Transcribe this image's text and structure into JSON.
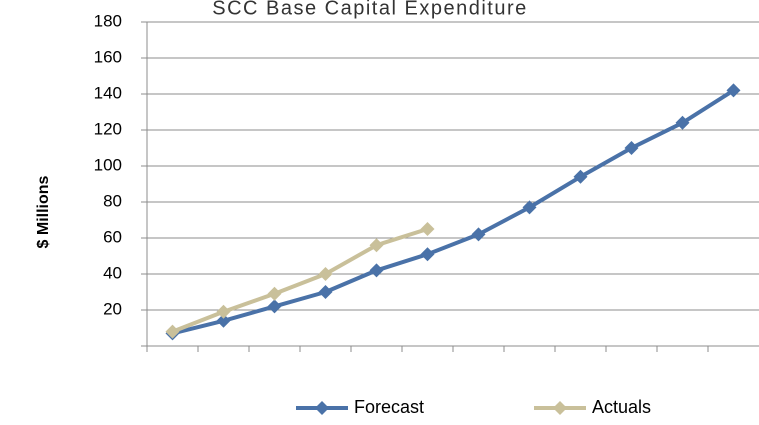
{
  "chart_data": {
    "type": "line",
    "title": "SCC Base Capital Expenditure",
    "y_label": "$ Millions",
    "categories": [
      null,
      null,
      null,
      null,
      null,
      null,
      null,
      null,
      null,
      null,
      null,
      null
    ],
    "series": [
      {
        "name": "Forecast",
        "color": "#4a72a8",
        "values": [
          7,
          14,
          22,
          30,
          42,
          51,
          62,
          77,
          94,
          110,
          124,
          142
        ]
      },
      {
        "name": "Actuals",
        "color": "#c9c09a",
        "values": [
          8,
          19,
          29,
          40,
          56,
          65,
          null,
          null,
          null,
          null,
          null,
          null
        ]
      }
    ],
    "ylim": [
      0,
      180
    ],
    "yticks": [
      20,
      40,
      60,
      80,
      100,
      120,
      140,
      160,
      180
    ],
    "grid": true,
    "legend": "bottom"
  }
}
